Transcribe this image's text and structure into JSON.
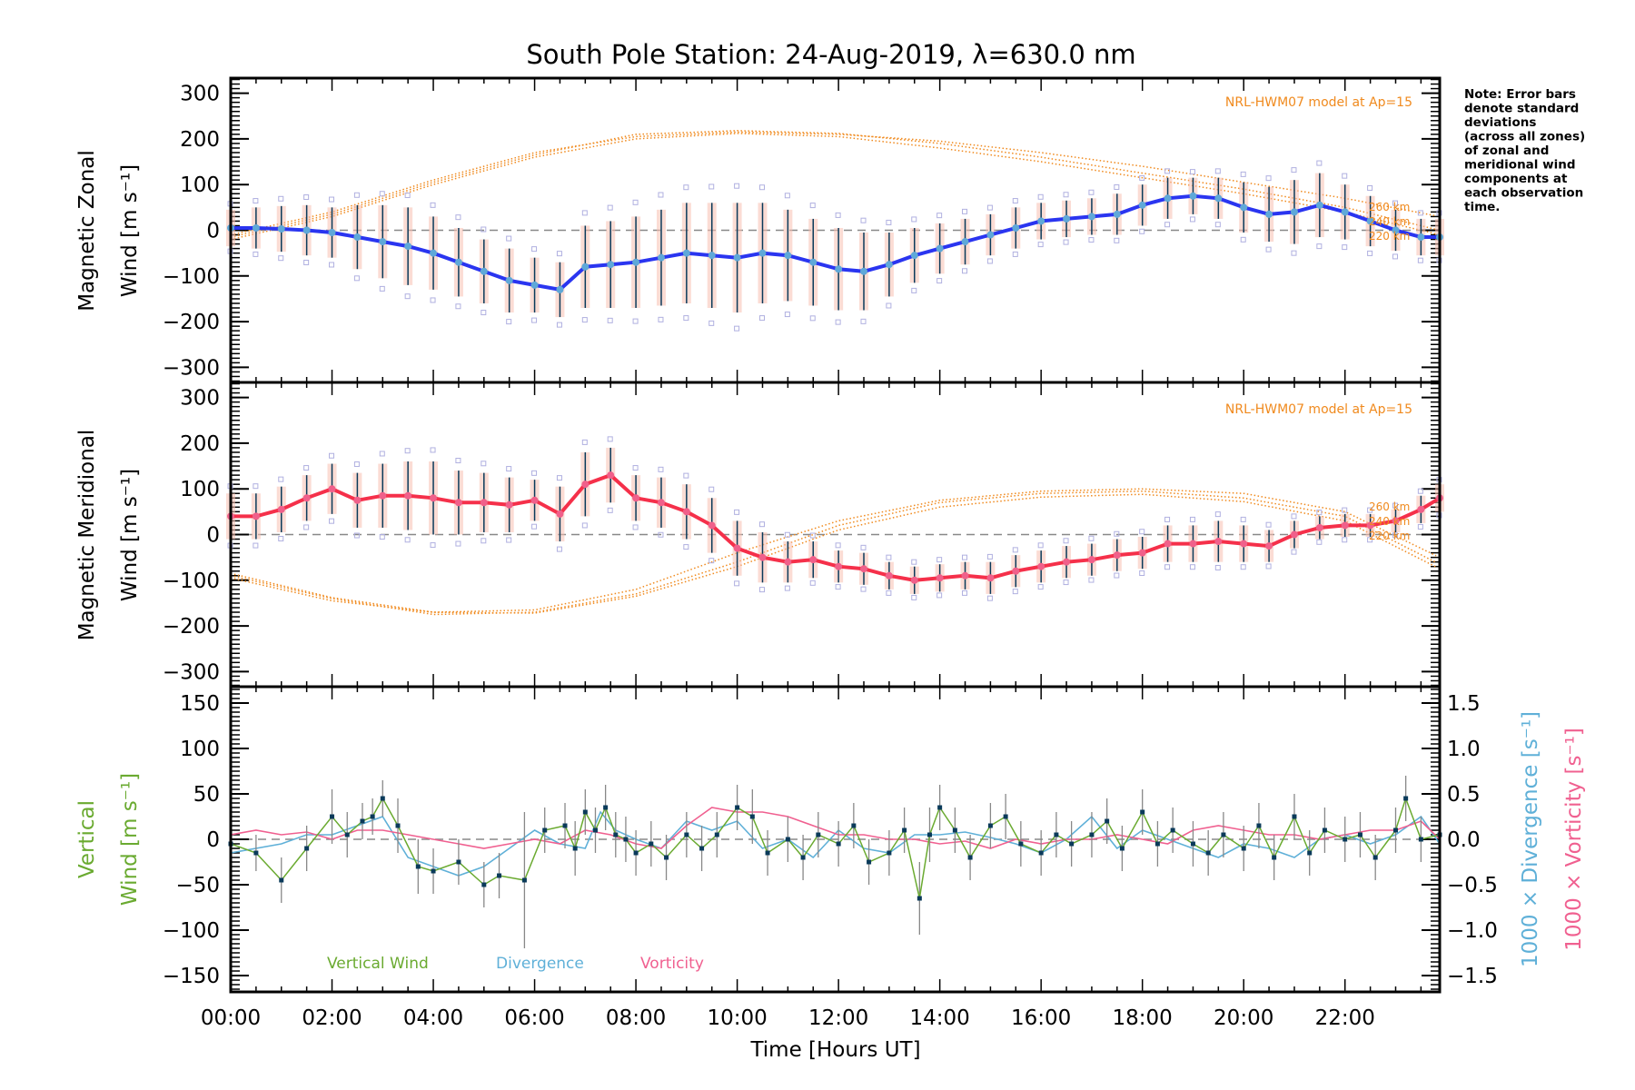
{
  "title": "South Pole Station: 24-Aug-2019, λ=630.0 nm",
  "note": [
    "Note: Error bars",
    "denote standard",
    "deviations",
    "(across all zones)",
    "of zonal and",
    "meridional wind",
    "components at",
    "each observation",
    "time."
  ],
  "colors": {
    "zonal": "#2a35f0",
    "zonal_marker": "#5fa8d8",
    "meridional": "#f5304a",
    "meridional_marker": "#f0608a",
    "model": "#f08a1e",
    "vertical": "#6aaa30",
    "divergence": "#5fb0d8",
    "vorticity": "#f06090",
    "errorbar": "#0a3a5a",
    "zone": "#b0b0e0"
  },
  "xaxis": {
    "label": "Time [Hours UT]",
    "range": [
      0,
      23.87
    ],
    "ticks": [
      0,
      2,
      4,
      6,
      8,
      10,
      12,
      14,
      16,
      18,
      20,
      22
    ],
    "tick_labels": [
      "00:00",
      "02:00",
      "04:00",
      "06:00",
      "08:00",
      "10:00",
      "12:00",
      "14:00",
      "16:00",
      "18:00",
      "20:00",
      "22:00"
    ]
  },
  "chart_data": [
    {
      "type": "line",
      "name": "zonal",
      "ylabel_line1": "Magnetic Zonal",
      "ylabel_line2": "Wind [m s⁻¹]",
      "ylim": [
        -333,
        333
      ],
      "yticks": [
        300,
        200,
        100,
        0,
        -100,
        -200,
        -300
      ],
      "ytick_labels": [
        "300",
        "200",
        "100",
        "0",
        "−100",
        "−200",
        "−300"
      ],
      "model_label": "NRL-HWM07 model at Ap=15",
      "km_labels": [
        "260 km",
        "240 km",
        "220 km"
      ],
      "x": [
        0,
        0.5,
        1,
        1.5,
        2,
        2.5,
        3,
        3.5,
        4,
        4.5,
        5,
        5.5,
        6,
        6.5,
        7,
        7.5,
        8,
        8.5,
        9,
        9.5,
        10,
        10.5,
        11,
        11.5,
        12,
        12.5,
        13,
        13.5,
        14,
        14.5,
        15,
        15.5,
        16,
        16.5,
        17,
        17.5,
        18,
        18.5,
        19,
        19.5,
        20,
        20.5,
        21,
        21.5,
        22,
        22.5,
        23,
        23.5,
        23.87
      ],
      "values": [
        5,
        5,
        3,
        0,
        -5,
        -15,
        -25,
        -35,
        -50,
        -70,
        -90,
        -110,
        -120,
        -130,
        -80,
        -75,
        -70,
        -60,
        -50,
        -55,
        -60,
        -50,
        -55,
        -70,
        -85,
        -90,
        -75,
        -55,
        -40,
        -25,
        -10,
        5,
        20,
        25,
        30,
        35,
        55,
        70,
        75,
        70,
        50,
        35,
        40,
        55,
        40,
        20,
        0,
        -15,
        -15
      ],
      "error": [
        40,
        45,
        50,
        55,
        55,
        70,
        80,
        85,
        80,
        75,
        70,
        70,
        60,
        60,
        90,
        95,
        100,
        105,
        110,
        115,
        120,
        110,
        100,
        95,
        90,
        85,
        70,
        60,
        55,
        50,
        45,
        45,
        40,
        40,
        40,
        45,
        45,
        45,
        40,
        45,
        55,
        60,
        70,
        70,
        60,
        55,
        45,
        40,
        40
      ],
      "model": [
        {
          "name": "260 km",
          "values": [
            -10,
            40,
            110,
            170,
            205,
            215,
            210,
            195,
            170,
            140,
            105,
            70,
            30
          ]
        },
        {
          "name": "240 km",
          "values": [
            -15,
            35,
            105,
            165,
            210,
            218,
            212,
            190,
            160,
            125,
            90,
            50,
            0
          ]
        },
        {
          "name": "220 km",
          "values": [
            -20,
            30,
            100,
            160,
            200,
            212,
            205,
            180,
            150,
            115,
            80,
            40,
            -10
          ]
        }
      ],
      "model_x": [
        0,
        2,
        4,
        6,
        8,
        10,
        12,
        14,
        16,
        18,
        20,
        22,
        23.87
      ]
    },
    {
      "type": "line",
      "name": "meridional",
      "ylabel_line1": "Magnetic Meridional",
      "ylabel_line2": "Wind [m s⁻¹]",
      "ylim": [
        -333,
        333
      ],
      "yticks": [
        300,
        200,
        100,
        0,
        -100,
        -200,
        -300
      ],
      "ytick_labels": [
        "300",
        "200",
        "100",
        "0",
        "−100",
        "−200",
        "−300"
      ],
      "model_label": "NRL-HWM07 model at Ap=15",
      "km_labels": [
        "260 km",
        "240 km",
        "220 km"
      ],
      "x": [
        0,
        0.5,
        1,
        1.5,
        2,
        2.5,
        3,
        3.5,
        4,
        4.5,
        5,
        5.5,
        6,
        6.5,
        7,
        7.5,
        8,
        8.5,
        9,
        9.5,
        10,
        10.5,
        11,
        11.5,
        12,
        12.5,
        13,
        13.5,
        14,
        14.5,
        15,
        15.5,
        16,
        16.5,
        17,
        17.5,
        18,
        18.5,
        19,
        19.5,
        20,
        20.5,
        21,
        21.5,
        22,
        22.5,
        23,
        23.5,
        23.87
      ],
      "values": [
        40,
        40,
        55,
        80,
        100,
        75,
        85,
        85,
        80,
        70,
        70,
        65,
        75,
        45,
        110,
        130,
        80,
        70,
        50,
        20,
        -30,
        -50,
        -60,
        -55,
        -70,
        -75,
        -90,
        -100,
        -95,
        -90,
        -95,
        -80,
        -70,
        -60,
        -55,
        -45,
        -40,
        -20,
        -20,
        -15,
        -20,
        -25,
        0,
        15,
        20,
        20,
        30,
        55,
        80
      ],
      "error": [
        50,
        50,
        50,
        50,
        55,
        60,
        70,
        75,
        80,
        70,
        65,
        60,
        45,
        60,
        70,
        60,
        50,
        55,
        60,
        60,
        60,
        55,
        45,
        40,
        35,
        35,
        30,
        30,
        30,
        30,
        35,
        35,
        35,
        35,
        35,
        35,
        35,
        40,
        40,
        45,
        40,
        35,
        30,
        25,
        25,
        25,
        25,
        30,
        30
      ],
      "model": [
        {
          "name": "260 km",
          "values": [
            -95,
            -145,
            -170,
            -165,
            -120,
            -40,
            30,
            75,
            95,
            100,
            90,
            50,
            -50
          ]
        },
        {
          "name": "240 km",
          "values": [
            -90,
            -140,
            -175,
            -170,
            -130,
            -60,
            20,
            70,
            90,
            95,
            80,
            40,
            -65
          ]
        },
        {
          "name": "220 km",
          "values": [
            -85,
            -138,
            -170,
            -172,
            -135,
            -70,
            10,
            60,
            82,
            88,
            72,
            30,
            -75
          ]
        }
      ],
      "model_x": [
        0,
        2,
        4,
        6,
        8,
        10,
        12,
        14,
        16,
        18,
        20,
        22,
        23.87
      ]
    },
    {
      "type": "line",
      "name": "vertical",
      "ylabel_line1": "Vertical",
      "ylabel_line2": "Wind [m s⁻¹]",
      "ylim": [
        -168,
        168
      ],
      "yticks": [
        150,
        100,
        50,
        0,
        -50,
        -100,
        -150
      ],
      "ytick_labels": [
        "150",
        "100",
        "50",
        "0",
        "−50",
        "−100",
        "−150"
      ],
      "y2label_divergence": "1000 × Divergence [s⁻¹]",
      "y2label_vorticity": "1000 × Vorticity [s⁻¹]",
      "y2lim": [
        -1.68,
        1.68
      ],
      "y2ticks": [
        1.5,
        1.0,
        0.5,
        0.0,
        -0.5,
        -1.0,
        -1.5
      ],
      "y2tick_labels": [
        "1.5",
        "1.0",
        "0.5",
        "0.0",
        "−0.5",
        "−1.0",
        "−1.5"
      ],
      "legend": [
        "Vertical Wind",
        "Divergence",
        "Vorticity"
      ],
      "series": [
        {
          "name": "Vertical Wind",
          "x": [
            0,
            0.5,
            1,
            1.5,
            2,
            2.3,
            2.6,
            2.8,
            3,
            3.3,
            3.7,
            4,
            4.5,
            5,
            5.3,
            5.8,
            6.2,
            6.6,
            6.8,
            7,
            7.2,
            7.4,
            7.6,
            7.8,
            8,
            8.3,
            8.6,
            9,
            9.3,
            9.6,
            10,
            10.3,
            10.6,
            11,
            11.3,
            11.6,
            12,
            12.3,
            12.6,
            13,
            13.3,
            13.6,
            13.8,
            14,
            14.3,
            14.6,
            15,
            15.3,
            15.6,
            16,
            16.3,
            16.6,
            17,
            17.3,
            17.6,
            18,
            18.3,
            18.6,
            19,
            19.3,
            19.6,
            20,
            20.3,
            20.6,
            21,
            21.3,
            21.6,
            22,
            22.3,
            22.6,
            23,
            23.2,
            23.5,
            23.87
          ],
          "values": [
            -5,
            -15,
            -45,
            -10,
            25,
            5,
            20,
            25,
            45,
            15,
            -30,
            -35,
            -25,
            -50,
            -40,
            -45,
            10,
            15,
            -10,
            30,
            10,
            35,
            5,
            0,
            -15,
            -5,
            -20,
            5,
            -10,
            5,
            35,
            25,
            -15,
            0,
            -20,
            5,
            -5,
            15,
            -25,
            -15,
            10,
            -65,
            5,
            35,
            10,
            -20,
            15,
            25,
            -5,
            -15,
            5,
            -5,
            5,
            20,
            -10,
            30,
            -5,
            10,
            -5,
            -15,
            5,
            -10,
            15,
            -20,
            25,
            -15,
            10,
            0,
            5,
            -20,
            10,
            45,
            0,
            5
          ],
          "error": [
            20,
            20,
            25,
            25,
            30,
            25,
            20,
            20,
            20,
            30,
            30,
            25,
            25,
            25,
            25,
            75,
            25,
            25,
            30,
            25,
            25,
            25,
            25,
            25,
            25,
            25,
            25,
            25,
            25,
            25,
            25,
            30,
            25,
            25,
            25,
            25,
            25,
            25,
            25,
            25,
            25,
            40,
            30,
            25,
            25,
            25,
            25,
            25,
            25,
            25,
            25,
            25,
            25,
            25,
            25,
            25,
            25,
            25,
            25,
            25,
            25,
            25,
            25,
            25,
            25,
            25,
            25,
            25,
            25,
            25,
            25,
            25,
            25,
            25
          ]
        },
        {
          "name": "Divergence",
          "x": [
            0,
            1,
            1.5,
            2,
            2.5,
            3,
            3.5,
            4,
            4.5,
            5,
            5.5,
            6,
            6.5,
            7,
            7.3,
            7.6,
            8,
            8.5,
            9,
            9.5,
            10,
            10.5,
            11,
            11.5,
            12,
            12.5,
            13,
            13.5,
            14,
            14.5,
            15,
            15.5,
            16,
            16.5,
            17,
            17.5,
            18,
            18.5,
            19,
            19.5,
            20,
            20.5,
            21,
            21.5,
            22,
            22.5,
            23,
            23.5,
            23.87
          ],
          "values": [
            -0.15,
            -0.05,
            0.05,
            0.05,
            0.15,
            0.25,
            -0.2,
            -0.3,
            -0.4,
            -0.3,
            -0.1,
            0.1,
            -0.05,
            -0.1,
            0.3,
            0.1,
            0.0,
            -0.1,
            0.2,
            0.1,
            0.2,
            -0.1,
            0.0,
            -0.2,
            0.1,
            -0.1,
            -0.15,
            0.05,
            0.05,
            0.08,
            0.02,
            -0.05,
            -0.15,
            0.0,
            0.25,
            -0.1,
            0.1,
            0.0,
            -0.1,
            -0.2,
            -0.05,
            -0.1,
            -0.2,
            0.0,
            0.05,
            -0.05,
            0.05,
            0.25,
            -0.05
          ],
          "max_x": 23.87
        },
        {
          "name": "Vorticity",
          "x": [
            0,
            0.5,
            1,
            1.5,
            2,
            2.5,
            3,
            3.5,
            4,
            4.5,
            5,
            5.5,
            6,
            6.5,
            7,
            7.5,
            8,
            8.5,
            9,
            9.5,
            10,
            10.5,
            11,
            11.5,
            12,
            12.5,
            13,
            13.5,
            14,
            14.5,
            15,
            15.5,
            16,
            16.5,
            17,
            17.5,
            18,
            18.5,
            19,
            19.5,
            20,
            20.5,
            21,
            21.5,
            22,
            22.5,
            23,
            23.5,
            23.87
          ],
          "values": [
            0.05,
            0.1,
            0.05,
            0.08,
            0.0,
            0.1,
            0.1,
            0.05,
            0.0,
            -0.05,
            -0.1,
            -0.05,
            0.0,
            -0.05,
            0.1,
            0.05,
            -0.05,
            -0.1,
            0.15,
            0.35,
            0.3,
            0.3,
            0.25,
            0.15,
            0.05,
            0.05,
            0.0,
            0.0,
            -0.05,
            -0.02,
            -0.1,
            0.0,
            -0.05,
            0.0,
            0.0,
            0.05,
            0.0,
            -0.05,
            0.1,
            0.15,
            0.1,
            0.05,
            0.05,
            0.0,
            0.05,
            0.1,
            0.1,
            0.2,
            0.0
          ]
        }
      ]
    }
  ]
}
